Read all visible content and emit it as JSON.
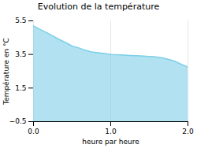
{
  "chart_data": {
    "type": "area",
    "title": "Evolution de la température",
    "xlabel": "heure par heure",
    "ylabel": "Température en °C",
    "x": [
      0.0,
      0.08,
      0.17,
      0.25,
      0.33,
      0.42,
      0.5,
      0.58,
      0.67,
      0.75,
      0.83,
      0.92,
      1.0,
      1.08,
      1.17,
      1.25,
      1.33,
      1.42,
      1.5,
      1.58,
      1.67,
      1.75,
      1.83,
      1.92,
      2.0
    ],
    "values": [
      5.2,
      5.0,
      4.8,
      4.6,
      4.4,
      4.2,
      4.0,
      3.9,
      3.75,
      3.65,
      3.6,
      3.55,
      3.5,
      3.48,
      3.46,
      3.44,
      3.42,
      3.4,
      3.38,
      3.35,
      3.3,
      3.2,
      3.1,
      2.9,
      2.75
    ],
    "color": "#7ecfe8",
    "xlim": [
      0,
      2
    ],
    "ylim": [
      -0.5,
      5.5
    ],
    "xticks": [
      0,
      1,
      2
    ],
    "yticks": [
      -0.5,
      1.5,
      3.5,
      5.5
    ],
    "grid": "x"
  }
}
